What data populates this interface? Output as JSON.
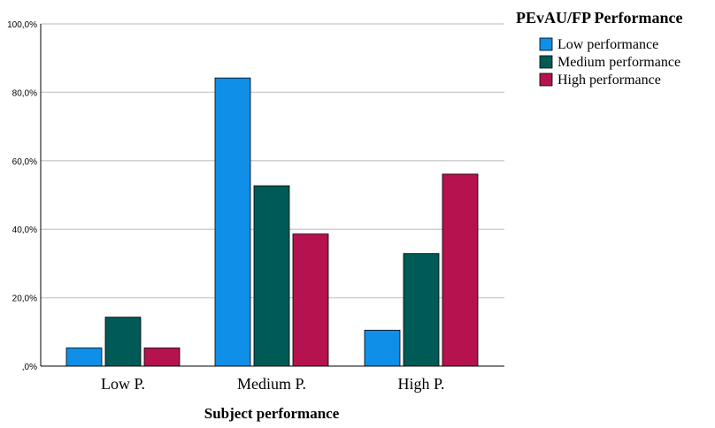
{
  "chart_data": {
    "type": "bar",
    "categories": [
      "Low P.",
      "Medium P.",
      "High P."
    ],
    "series": [
      {
        "name": "Low performance",
        "color": "#0f8fe8",
        "values": [
          5.3,
          84.2,
          10.5
        ]
      },
      {
        "name": "Medium performance",
        "color": "#005a56",
        "values": [
          14.3,
          52.7,
          32.9
        ]
      },
      {
        "name": "High performance",
        "color": "#b5124f",
        "values": [
          5.3,
          38.6,
          56.1
        ]
      }
    ],
    "ylim": [
      0,
      100
    ],
    "yticks": [
      0,
      20,
      40,
      60,
      80,
      100
    ],
    "ytick_labels": [
      ",0%",
      "20,0%",
      "40,0%",
      "60,0%",
      "80,0%",
      "100,0%"
    ],
    "xlabel": "Subject performance",
    "ylabel": "",
    "legend_title": "PEvAU/FP Performance",
    "legend_position": "top-right",
    "grid": true
  }
}
